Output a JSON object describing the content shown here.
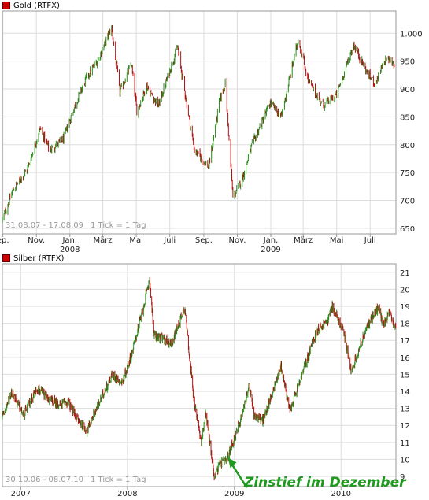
{
  "colors": {
    "up": "#2a8a1a",
    "down": "#b01010",
    "grid": "#dddddd",
    "frame": "#999999",
    "annotation": "#1f9a1f"
  },
  "chart_data": [
    {
      "type": "line",
      "style": "bar-ohlc",
      "title": "Gold (RTFX)",
      "period_label": "31.08.07 - 17.08.09",
      "tick_label": "1 Tick = 1 Tag",
      "yticks": [
        650,
        700,
        750,
        800,
        850,
        900,
        950,
        "1.000"
      ],
      "ylim": [
        640,
        1040
      ],
      "xticks": [
        {
          "label": "ep.",
          "x": "2007-09-01"
        },
        {
          "label": "Nov.",
          "x": "2007-11-01"
        },
        {
          "label": "Jan.",
          "x": "2008-01-01",
          "year": "2008"
        },
        {
          "label": "März",
          "x": "2008-03-01"
        },
        {
          "label": "Mai",
          "x": "2008-05-01"
        },
        {
          "label": "Juli",
          "x": "2008-07-01"
        },
        {
          "label": "Sep.",
          "x": "2008-09-01"
        },
        {
          "label": "Nov.",
          "x": "2008-11-01"
        },
        {
          "label": "Jan.",
          "x": "2009-01-01",
          "year": "2009"
        },
        {
          "label": "März",
          "x": "2009-03-01"
        },
        {
          "label": "Mai",
          "x": "2009-05-01"
        },
        {
          "label": "Juli",
          "x": "2009-07-01"
        }
      ],
      "xrange": [
        "2007-08-31",
        "2009-08-17"
      ],
      "grid": true,
      "series": [
        {
          "points": [
            [
              "2007-08-31",
              665
            ],
            [
              "2007-09-20",
              720
            ],
            [
              "2007-10-15",
              755
            ],
            [
              "2007-11-08",
              830
            ],
            [
              "2007-11-25",
              790
            ],
            [
              "2007-12-20",
              810
            ],
            [
              "2008-01-10",
              870
            ],
            [
              "2008-01-31",
              920
            ],
            [
              "2008-02-20",
              950
            ],
            [
              "2008-03-17",
              1010
            ],
            [
              "2008-04-01",
              895
            ],
            [
              "2008-04-22",
              945
            ],
            [
              "2008-05-02",
              860
            ],
            [
              "2008-05-20",
              905
            ],
            [
              "2008-06-10",
              870
            ],
            [
              "2008-07-15",
              975
            ],
            [
              "2008-08-15",
              790
            ],
            [
              "2008-09-10",
              760
            ],
            [
              "2008-09-30",
              880
            ],
            [
              "2008-10-10",
              910
            ],
            [
              "2008-10-24",
              705
            ],
            [
              "2008-11-10",
              740
            ],
            [
              "2008-11-28",
              800
            ],
            [
              "2008-12-31",
              875
            ],
            [
              "2009-01-20",
              850
            ],
            [
              "2009-02-20",
              990
            ],
            [
              "2009-03-10",
              915
            ],
            [
              "2009-04-06",
              870
            ],
            [
              "2009-05-01",
              890
            ],
            [
              "2009-06-01",
              980
            ],
            [
              "2009-06-25",
              930
            ],
            [
              "2009-07-10",
              910
            ],
            [
              "2009-07-30",
              955
            ],
            [
              "2009-08-17",
              945
            ]
          ]
        }
      ]
    },
    {
      "type": "line",
      "style": "bar-ohlc",
      "title": "Silber (RTFX)",
      "period_label": "30.10.06 - 08.07.10",
      "tick_label": "1 Tick = 1 Tag",
      "yticks": [
        9,
        10,
        11,
        12,
        13,
        14,
        15,
        16,
        17,
        18,
        19,
        20,
        21
      ],
      "ylim": [
        8.4,
        21.5
      ],
      "xticks": [
        {
          "label": "2007",
          "x": "2007-01-01"
        },
        {
          "label": "2008",
          "x": "2008-01-01"
        },
        {
          "label": "2009",
          "x": "2009-01-01"
        },
        {
          "label": "2010",
          "x": "2010-01-01"
        }
      ],
      "xrange": [
        "2006-10-30",
        "2010-07-08"
      ],
      "grid": true,
      "annotations": [
        {
          "text": "Zinstief im Dezember",
          "arrow_to": [
            "2008-12-10",
            10.1
          ]
        }
      ],
      "series": [
        {
          "points": [
            [
              "2006-10-30",
              12.5
            ],
            [
              "2006-12-01",
              14.0
            ],
            [
              "2007-01-10",
              12.6
            ],
            [
              "2007-02-25",
              14.2
            ],
            [
              "2007-04-01",
              13.6
            ],
            [
              "2007-05-15",
              13.2
            ],
            [
              "2007-06-10",
              13.4
            ],
            [
              "2007-07-20",
              12.2
            ],
            [
              "2007-08-16",
              11.7
            ],
            [
              "2007-09-15",
              12.9
            ],
            [
              "2007-10-20",
              14.2
            ],
            [
              "2007-11-10",
              15.0
            ],
            [
              "2007-12-15",
              14.5
            ],
            [
              "2008-01-20",
              16.5
            ],
            [
              "2008-02-25",
              19.0
            ],
            [
              "2008-03-17",
              20.6
            ],
            [
              "2008-04-01",
              17.3
            ],
            [
              "2008-05-10",
              17.0
            ],
            [
              "2008-06-01",
              16.8
            ],
            [
              "2008-07-15",
              19.0
            ],
            [
              "2008-08-15",
              13.5
            ],
            [
              "2008-09-10",
              11.0
            ],
            [
              "2008-09-25",
              12.8
            ],
            [
              "2008-10-24",
              9.0
            ],
            [
              "2008-11-15",
              9.8
            ],
            [
              "2008-12-05",
              9.9
            ],
            [
              "2008-12-31",
              11.2
            ],
            [
              "2009-01-20",
              12.2
            ],
            [
              "2009-02-20",
              14.3
            ],
            [
              "2009-03-10",
              12.6
            ],
            [
              "2009-04-10",
              12.3
            ],
            [
              "2009-05-20",
              14.4
            ],
            [
              "2009-06-10",
              15.5
            ],
            [
              "2009-07-10",
              12.8
            ],
            [
              "2009-08-15",
              14.7
            ],
            [
              "2009-09-20",
              16.6
            ],
            [
              "2009-10-10",
              17.6
            ],
            [
              "2009-11-15",
              18.1
            ],
            [
              "2009-12-02",
              19.0
            ],
            [
              "2010-01-10",
              17.5
            ],
            [
              "2010-02-05",
              15.2
            ],
            [
              "2010-02-25",
              16.2
            ],
            [
              "2010-03-20",
              17.3
            ],
            [
              "2010-04-20",
              18.5
            ],
            [
              "2010-05-10",
              18.9
            ],
            [
              "2010-05-25",
              17.9
            ],
            [
              "2010-06-15",
              18.6
            ],
            [
              "2010-07-08",
              17.6
            ]
          ]
        }
      ]
    }
  ]
}
